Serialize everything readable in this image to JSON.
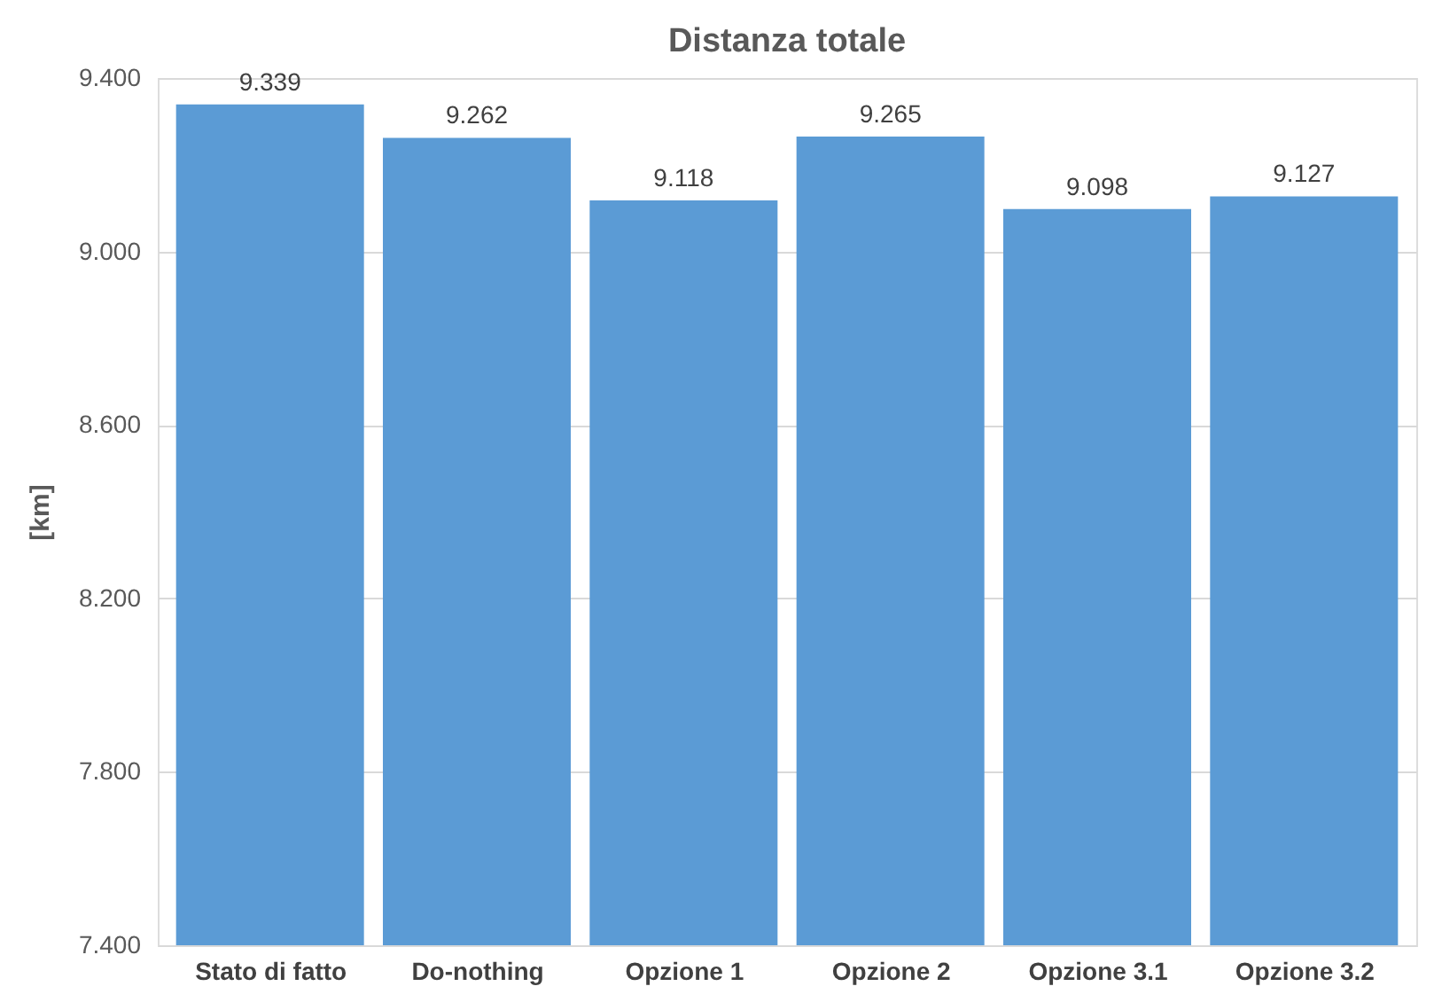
{
  "chart_data": {
    "type": "bar",
    "title": "Distanza totale",
    "ylabel": "[km]",
    "categories": [
      "Stato di fatto",
      "Do-nothing",
      "Opzione 1",
      "Opzione 2",
      "Opzione 3.1",
      "Opzione 3.2"
    ],
    "values": [
      9.339,
      9.262,
      9.118,
      9.265,
      9.098,
      9.127
    ],
    "value_labels": [
      "9.339",
      "9.262",
      "9.118",
      "9.265",
      "9.098",
      "9.127"
    ],
    "color": "#5b9bd5",
    "ylim": [
      7.4,
      9.4
    ],
    "yticks": [
      {
        "value": 7.4,
        "label": "7.400"
      },
      {
        "value": 7.8,
        "label": "7.800"
      },
      {
        "value": 8.2,
        "label": "8.200"
      },
      {
        "value": 8.6,
        "label": "8.600"
      },
      {
        "value": 9.0,
        "label": "9.000"
      },
      {
        "value": 9.4,
        "label": "9.400"
      }
    ],
    "grid": "y"
  }
}
